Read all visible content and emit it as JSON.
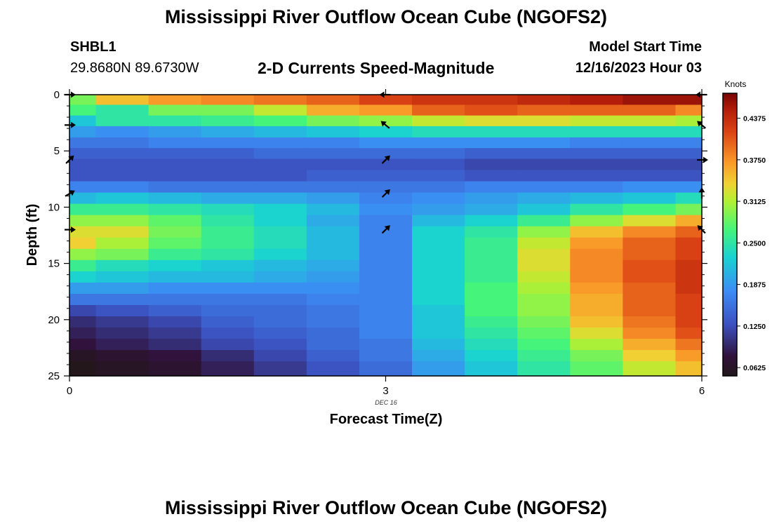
{
  "page": {
    "title": "Mississippi River Outflow Ocean Cube (NGOFS2)",
    "station": "SHBL1",
    "coords": "29.8680N  89.6730W",
    "subtitle": "2-D Currents Speed-Magnitude",
    "model_start_label": "Model Start Time",
    "model_start_value": "12/16/2023 Hour 03",
    "footer_title": "Mississippi River Outflow Ocean Cube (NGOFS2)"
  },
  "chart_data": {
    "type": "heatmap",
    "title": "2-D Currents Speed-Magnitude",
    "xlabel": "Forecast Time(Z)",
    "ylabel": "Depth (ft)",
    "x_date_label": "DEC 16",
    "xlim": [
      0,
      6
    ],
    "ylim": [
      0,
      25
    ],
    "y_inverted": true,
    "x_ticks": [
      0,
      3,
      6
    ],
    "y_ticks": [
      0,
      5,
      10,
      15,
      20,
      25
    ],
    "colorbar": {
      "label": "Knots",
      "range": [
        0.05,
        0.475
      ],
      "ticks": [
        "0.0625",
        "0.1250",
        "0.1875",
        "0.2500",
        "0.3125",
        "0.3750",
        "0.4375"
      ]
    },
    "x": [
      0,
      0.5,
      1,
      1.5,
      2,
      2.5,
      3,
      3.5,
      4,
      4.5,
      5,
      5.5,
      6
    ],
    "depth_levels": [
      0.4,
      1.4,
      2.3,
      3.3,
      4.3,
      5.2,
      6.2,
      7.2,
      8.2,
      9.2,
      10.2,
      11.2,
      12.2,
      13.2,
      14.2,
      15.2,
      16.2,
      17.2,
      18.2,
      19.2,
      20.2,
      21.2,
      22.2,
      23.2,
      24.2
    ],
    "speed_knots": [
      [
        0.29,
        0.35,
        0.37,
        0.38,
        0.39,
        0.4,
        0.42,
        0.43,
        0.43,
        0.44,
        0.45,
        0.46,
        0.46
      ],
      [
        0.27,
        0.25,
        0.29,
        0.29,
        0.32,
        0.36,
        0.37,
        0.4,
        0.41,
        0.4,
        0.4,
        0.4,
        0.38
      ],
      [
        0.22,
        0.25,
        0.25,
        0.26,
        0.27,
        0.29,
        0.3,
        0.32,
        0.33,
        0.33,
        0.32,
        0.32,
        0.31
      ],
      [
        0.19,
        0.18,
        0.19,
        0.2,
        0.21,
        0.22,
        0.23,
        0.24,
        0.24,
        0.24,
        0.24,
        0.24,
        0.24
      ],
      [
        0.16,
        0.16,
        0.17,
        0.17,
        0.17,
        0.17,
        0.18,
        0.18,
        0.18,
        0.18,
        0.17,
        0.17,
        0.17
      ],
      [
        0.14,
        0.14,
        0.14,
        0.14,
        0.15,
        0.15,
        0.15,
        0.15,
        0.14,
        0.14,
        0.14,
        0.14,
        0.14
      ],
      [
        0.13,
        0.13,
        0.13,
        0.13,
        0.13,
        0.13,
        0.13,
        0.13,
        0.12,
        0.12,
        0.12,
        0.12,
        0.12
      ],
      [
        0.13,
        0.13,
        0.13,
        0.13,
        0.13,
        0.14,
        0.14,
        0.14,
        0.13,
        0.13,
        0.13,
        0.13,
        0.13
      ],
      [
        0.17,
        0.17,
        0.16,
        0.16,
        0.16,
        0.16,
        0.16,
        0.16,
        0.17,
        0.17,
        0.17,
        0.18,
        0.18
      ],
      [
        0.21,
        0.22,
        0.21,
        0.2,
        0.2,
        0.19,
        0.17,
        0.18,
        0.19,
        0.2,
        0.21,
        0.22,
        0.24
      ],
      [
        0.26,
        0.26,
        0.25,
        0.24,
        0.23,
        0.21,
        0.18,
        0.19,
        0.2,
        0.22,
        0.25,
        0.27,
        0.29
      ],
      [
        0.3,
        0.3,
        0.28,
        0.25,
        0.23,
        0.2,
        0.17,
        0.21,
        0.23,
        0.26,
        0.3,
        0.33,
        0.36
      ],
      [
        0.33,
        0.33,
        0.29,
        0.26,
        0.24,
        0.21,
        0.17,
        0.23,
        0.25,
        0.3,
        0.35,
        0.38,
        0.4
      ],
      [
        0.34,
        0.31,
        0.28,
        0.26,
        0.24,
        0.21,
        0.17,
        0.23,
        0.26,
        0.32,
        0.37,
        0.4,
        0.42
      ],
      [
        0.3,
        0.29,
        0.26,
        0.25,
        0.23,
        0.21,
        0.17,
        0.23,
        0.26,
        0.33,
        0.38,
        0.4,
        0.42
      ],
      [
        0.26,
        0.24,
        0.23,
        0.22,
        0.21,
        0.2,
        0.17,
        0.23,
        0.26,
        0.33,
        0.38,
        0.41,
        0.43
      ],
      [
        0.23,
        0.22,
        0.21,
        0.21,
        0.2,
        0.19,
        0.17,
        0.23,
        0.26,
        0.32,
        0.38,
        0.41,
        0.43
      ],
      [
        0.19,
        0.19,
        0.18,
        0.18,
        0.18,
        0.18,
        0.17,
        0.23,
        0.27,
        0.31,
        0.37,
        0.4,
        0.43
      ],
      [
        0.16,
        0.16,
        0.16,
        0.16,
        0.16,
        0.17,
        0.17,
        0.23,
        0.27,
        0.3,
        0.36,
        0.4,
        0.42
      ],
      [
        0.12,
        0.13,
        0.14,
        0.15,
        0.15,
        0.16,
        0.17,
        0.22,
        0.27,
        0.3,
        0.36,
        0.4,
        0.42
      ],
      [
        0.1,
        0.11,
        0.12,
        0.14,
        0.15,
        0.16,
        0.17,
        0.22,
        0.26,
        0.29,
        0.35,
        0.39,
        0.42
      ],
      [
        0.09,
        0.1,
        0.11,
        0.13,
        0.14,
        0.15,
        0.17,
        0.22,
        0.25,
        0.28,
        0.33,
        0.38,
        0.41
      ],
      [
        0.08,
        0.09,
        0.1,
        0.12,
        0.13,
        0.15,
        0.16,
        0.21,
        0.24,
        0.27,
        0.31,
        0.36,
        0.39
      ],
      [
        0.06,
        0.07,
        0.08,
        0.1,
        0.12,
        0.14,
        0.16,
        0.2,
        0.23,
        0.26,
        0.29,
        0.34,
        0.37
      ],
      [
        0.05,
        0.06,
        0.07,
        0.09,
        0.11,
        0.13,
        0.15,
        0.19,
        0.22,
        0.25,
        0.28,
        0.32,
        0.35
      ]
    ],
    "direction_arrows": {
      "depths": [
        0,
        2.7,
        5.8,
        8.8,
        12
      ],
      "x": [
        0,
        3,
        6
      ],
      "angles_deg": [
        [
          0,
          180,
          180
        ],
        [
          0,
          140,
          140
        ],
        [
          45,
          45,
          0
        ],
        [
          30,
          45,
          90
        ],
        [
          0,
          45,
          135
        ]
      ]
    }
  }
}
